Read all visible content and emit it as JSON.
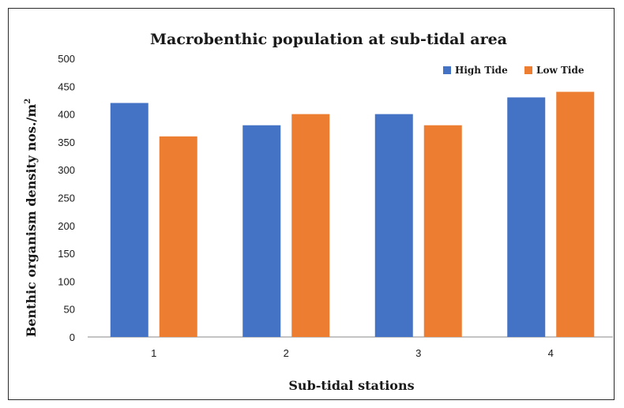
{
  "chart_data": {
    "type": "bar",
    "title": "Macrobenthic population at sub-tidal area",
    "xlabel": "Sub-tidal stations",
    "ylabel": "Benthic organism density nos./m",
    "ylabel_superscript": "2",
    "categories": [
      "1",
      "2",
      "3",
      "4"
    ],
    "series": [
      {
        "name": "High Tide",
        "color": "#4472c4",
        "values": [
          420,
          380,
          400,
          430
        ]
      },
      {
        "name": "Low Tide",
        "color": "#ed7d31",
        "values": [
          360,
          400,
          380,
          440
        ]
      }
    ],
    "ylim": [
      0,
      500
    ],
    "yticks": [
      "0",
      "50",
      "100",
      "150",
      "200",
      "250",
      "300",
      "350",
      "400",
      "450",
      "500"
    ],
    "grid": false,
    "legend_position": "top-right"
  }
}
